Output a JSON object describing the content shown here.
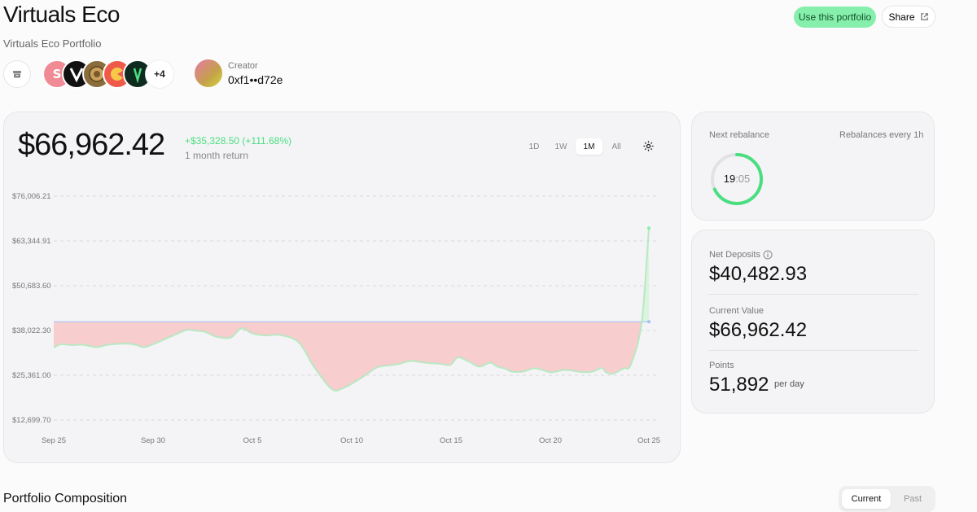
{
  "header": {
    "title": "Virtuals Eco",
    "subtitle": "Virtuals Eco Portfolio",
    "use_portfolio_label": "Use this portfolio",
    "share_label": "Share"
  },
  "tokens": {
    "items": [
      {
        "icon": "token-pink-icon",
        "color": "#f08a94"
      },
      {
        "icon": "token-virtuals-icon",
        "color": "#111111"
      },
      {
        "icon": "token-coin-icon",
        "color": "#8a6d3b"
      },
      {
        "icon": "token-red-icon",
        "color": "#ef5b4b"
      },
      {
        "icon": "token-green-icon",
        "color": "#0f2a1e"
      }
    ],
    "more_label": "+4"
  },
  "creator": {
    "label": "Creator",
    "address": "0xf1••d72e"
  },
  "performance": {
    "value": "$66,962.42",
    "change": "+$35,328.50 (+111.68%)",
    "period": "1 month return",
    "ranges": [
      "1D",
      "1W",
      "1M",
      "All"
    ],
    "active_range": "1M"
  },
  "chart_data": {
    "type": "area",
    "y_ticks": [
      "$76,006.21",
      "$63,344.91",
      "$50,683.60",
      "$38,022.30",
      "$25,361.00",
      "$12,699.70"
    ],
    "x_ticks": [
      "Sep 25",
      "Sep 30",
      "Oct 5",
      "Oct 10",
      "Oct 15",
      "Oct 20",
      "Oct 25"
    ],
    "ylim": [
      12699.7,
      76006.21
    ],
    "baseline": 40482.93,
    "x": [
      0,
      0.4,
      1,
      1.6,
      2.4,
      3,
      4,
      4.6,
      5,
      5.6,
      6.8,
      7.4,
      7.8,
      8.4,
      9,
      9.8,
      10.4,
      11,
      11.4,
      11.8,
      12.6,
      13.6,
      14.4,
      15.4,
      16,
      16.8,
      17.4,
      18,
      19,
      19.8,
      20.6,
      21.4,
      22,
      22.4,
      23,
      23.6,
      24.2,
      24.6,
      25,
      25.4,
      26,
      26.6,
      27,
      27.6,
      28.2,
      28.6,
      29.2,
      29.8,
      30.4,
      30.6,
      31,
      31.6,
      32,
      32.6,
      33
    ],
    "y": [
      33200,
      34100,
      33900,
      34000,
      33300,
      34000,
      34300,
      33900,
      33300,
      34300,
      37000,
      38200,
      38000,
      37600,
      36300,
      36000,
      38600,
      37200,
      36800,
      36600,
      36700,
      34600,
      28000,
      21500,
      21600,
      23800,
      25800,
      27700,
      28400,
      29400,
      28900,
      28600,
      28300,
      30400,
      29300,
      27800,
      28900,
      27800,
      27300,
      26400,
      26400,
      27300,
      27000,
      26200,
      26800,
      26800,
      26300,
      26300,
      27400,
      26300,
      25800,
      27300,
      28400,
      40300,
      66960
    ]
  },
  "rebalance": {
    "label": "Next rebalance",
    "frequency": "Rebalances every 1h",
    "timer_main": "19",
    "timer_sec": ":05",
    "progress": 0.68
  },
  "stats": {
    "net_deposits_label": "Net Deposits",
    "net_deposits": "$40,482.93",
    "current_value_label": "Current Value",
    "current_value": "$66,962.42",
    "points_label": "Points",
    "points": "51,892",
    "points_unit": "per day"
  },
  "composition": {
    "title": "Portfolio Composition",
    "tabs": [
      "Current",
      "Past"
    ],
    "active_tab": "Current"
  },
  "colors": {
    "accent_green": "#4ade80",
    "loss_red": "#f5b6b6",
    "baseline_blue": "#a7c1f2"
  }
}
